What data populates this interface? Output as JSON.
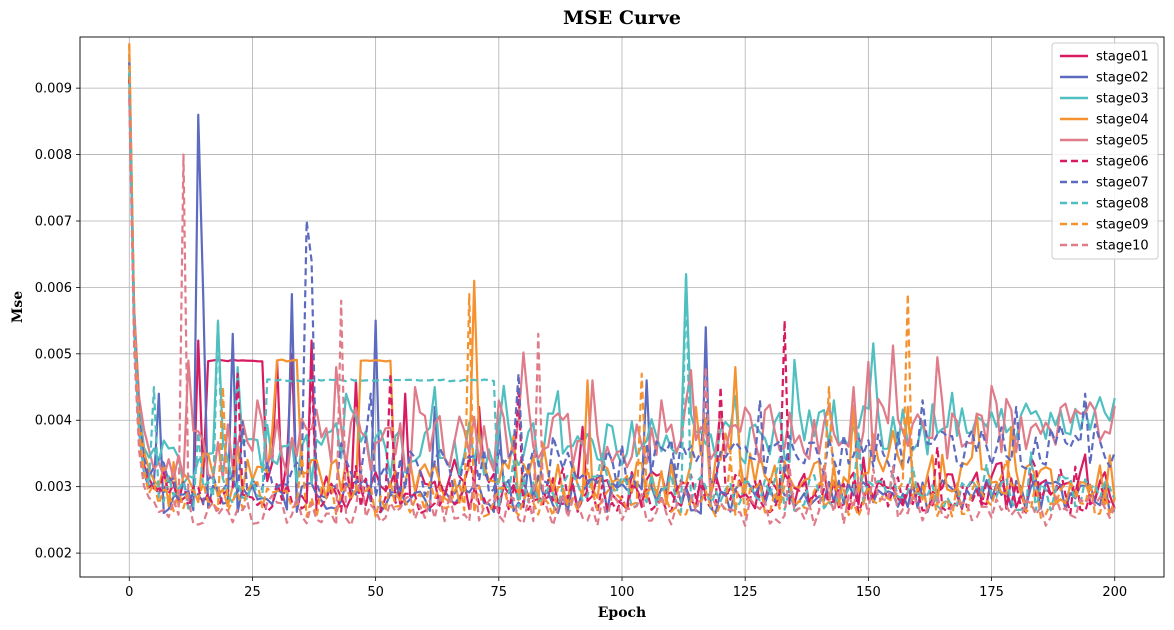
{
  "chart_data": {
    "type": "line",
    "title": "MSE Curve",
    "xlabel": "Epoch",
    "ylabel": "Mse",
    "xlim": [
      -10,
      210
    ],
    "ylim": [
      0.00164,
      0.00977
    ],
    "xticks": [
      0,
      25,
      50,
      75,
      100,
      125,
      150,
      175,
      200
    ],
    "yticks": [
      0.002,
      0.003,
      0.004,
      0.005,
      0.006,
      0.007,
      0.008,
      0.009
    ],
    "xtick_labels": [
      "0",
      "25",
      "50",
      "75",
      "100",
      "125",
      "150",
      "175",
      "200"
    ],
    "ytick_labels": [
      "0.002",
      "0.003",
      "0.004",
      "0.005",
      "0.006",
      "0.007",
      "0.008",
      "0.009"
    ],
    "grid": true,
    "legend_position": "top-right",
    "series": [
      {
        "name": "stage01",
        "color": "#d81b60",
        "dash": "solid",
        "seed": 11,
        "base": 0.00295,
        "noise": 0.00018,
        "start": 0.0092,
        "plateaus": [
          [
            16,
            27,
            0.0049
          ]
        ],
        "spikes": [
          [
            14,
            0.0052
          ],
          [
            19,
            0.0049
          ],
          [
            30,
            0.0049
          ],
          [
            33,
            0.005
          ],
          [
            37,
            0.0052
          ],
          [
            46,
            0.0046
          ],
          [
            56,
            0.0044
          ],
          [
            71,
            0.0042
          ],
          [
            92,
            0.0039
          ]
        ]
      },
      {
        "name": "stage02",
        "color": "#5c6bc0",
        "dash": "solid",
        "seed": 22,
        "base": 0.00285,
        "noise": 0.00016,
        "start": 0.0095,
        "plateaus": [],
        "spikes": [
          [
            6,
            0.0044
          ],
          [
            14,
            0.0086
          ],
          [
            15,
            0.0059
          ],
          [
            21,
            0.0053
          ],
          [
            33,
            0.0059
          ],
          [
            50,
            0.0055
          ],
          [
            62,
            0.0042
          ],
          [
            75,
            0.004
          ],
          [
            105,
            0.0046
          ],
          [
            117,
            0.0054
          ]
        ]
      },
      {
        "name": "stage03",
        "color": "#4fbfc0",
        "dash": "solid",
        "seed": 33,
        "base": 0.0033,
        "noise": 0.00025,
        "start": 0.0093,
        "plateaus": [],
        "trend": 3.5e-06,
        "spikes": [
          [
            18,
            0.0055
          ],
          [
            22,
            0.0048
          ],
          [
            44,
            0.0044
          ],
          [
            62,
            0.0045
          ],
          [
            86,
            0.0041
          ],
          [
            113,
            0.0062
          ],
          [
            143,
            0.0043
          ],
          [
            176,
            0.0039
          ]
        ]
      },
      {
        "name": "stage04",
        "color": "#f5922f",
        "dash": "solid",
        "seed": 44,
        "base": 0.0031,
        "noise": 0.00025,
        "start": 0.0096,
        "plateaus": [
          [
            31,
            34,
            0.0049
          ],
          [
            47,
            53,
            0.0049
          ]
        ],
        "spikes": [
          [
            30,
            0.0049
          ],
          [
            70,
            0.0061
          ],
          [
            93,
            0.0046
          ],
          [
            115,
            0.0042
          ],
          [
            123,
            0.0048
          ],
          [
            158,
            0.0042
          ],
          [
            172,
            0.0041
          ]
        ]
      },
      {
        "name": "stage05",
        "color": "#e07b89",
        "dash": "solid",
        "seed": 55,
        "base": 0.0035,
        "noise": 0.00028,
        "start": 0.0089,
        "plateaus": [],
        "trend": 2.2e-06,
        "spikes": [
          [
            12,
            0.0049
          ],
          [
            26,
            0.0043
          ],
          [
            42,
            0.0048
          ],
          [
            58,
            0.0045
          ],
          [
            75,
            0.0043
          ],
          [
            94,
            0.0046
          ],
          [
            108,
            0.0043
          ],
          [
            147,
            0.0045
          ],
          [
            193,
            0.0041
          ],
          [
            199,
            0.0038
          ]
        ]
      },
      {
        "name": "stage06",
        "color": "#d81b60",
        "dash": "dashed",
        "seed": 66,
        "base": 0.00285,
        "noise": 0.00016,
        "start": 0.0092,
        "plateaus": [],
        "spikes": [
          [
            22,
            0.0047
          ],
          [
            37,
            0.0049
          ],
          [
            53,
            0.0047
          ],
          [
            79,
            0.0045
          ],
          [
            120,
            0.0045
          ],
          [
            133,
            0.0055
          ],
          [
            164,
            0.0036
          ],
          [
            192,
            0.0033
          ]
        ]
      },
      {
        "name": "stage07",
        "color": "#5c6bc0",
        "dash": "dashed",
        "seed": 77,
        "base": 0.00305,
        "noise": 0.00022,
        "start": 0.0094,
        "plateaus": [],
        "trend": 2.8e-06,
        "spikes": [
          [
            36,
            0.007
          ],
          [
            37,
            0.0064
          ],
          [
            49,
            0.0044
          ],
          [
            79,
            0.0047
          ],
          [
            117,
            0.0044
          ],
          [
            128,
            0.0043
          ],
          [
            161,
            0.0043
          ],
          [
            180,
            0.0042
          ],
          [
            194,
            0.0044
          ]
        ]
      },
      {
        "name": "stage08",
        "color": "#4fbfc0",
        "dash": "dashed",
        "seed": 88,
        "base": 0.0029,
        "noise": 0.00018,
        "start": 0.0092,
        "plateaus": [
          [
            28,
            74,
            0.0046
          ]
        ],
        "spikes": [
          [
            5,
            0.0045
          ],
          [
            18,
            0.0055
          ],
          [
            113,
            0.0062
          ],
          [
            148,
            0.0038
          ]
        ]
      },
      {
        "name": "stage09",
        "color": "#f5922f",
        "dash": "dashed",
        "seed": 99,
        "base": 0.0028,
        "noise": 0.00017,
        "start": 0.0097,
        "plateaus": [],
        "spikes": [
          [
            19,
            0.0045
          ],
          [
            69,
            0.0059
          ],
          [
            104,
            0.0047
          ],
          [
            142,
            0.0045
          ],
          [
            158,
            0.0059
          ],
          [
            178,
            0.0034
          ]
        ]
      },
      {
        "name": "stage10",
        "color": "#e07b89",
        "dash": "dashed",
        "seed": 111,
        "base": 0.00265,
        "noise": 0.00015,
        "start": 0.0088,
        "plateaus": [],
        "spikes": [
          [
            11,
            0.008
          ],
          [
            43,
            0.0058
          ],
          [
            83,
            0.0053
          ],
          [
            117,
            0.0048
          ],
          [
            134,
            0.0033
          ]
        ]
      }
    ]
  }
}
